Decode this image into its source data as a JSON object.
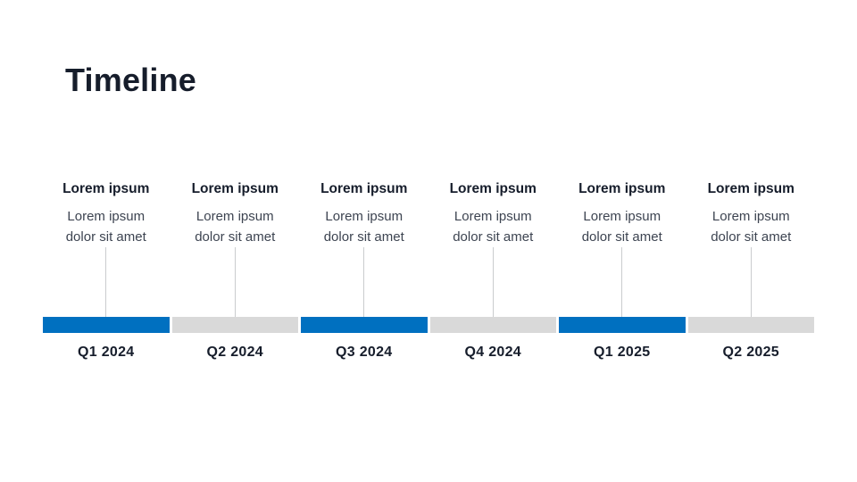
{
  "slide": {
    "title": "Timeline"
  },
  "colors": {
    "accent_blue": "#0070C0",
    "track_gray": "#D9D9D9",
    "connector_gray": "#CACCCE",
    "heading_dark": "#161D2B",
    "body_gray": "#3D4451"
  },
  "milestones": [
    {
      "heading": "Lorem ipsum",
      "description": "Lorem ipsum dolor sit amet",
      "period": "Q1 2024",
      "bar_color": "#0070C0"
    },
    {
      "heading": "Lorem ipsum",
      "description": "Lorem ipsum dolor sit amet",
      "period": "Q2 2024",
      "bar_color": "#D9D9D9"
    },
    {
      "heading": "Lorem ipsum",
      "description": "Lorem ipsum dolor sit amet",
      "period": "Q3 2024",
      "bar_color": "#0070C0"
    },
    {
      "heading": "Lorem ipsum",
      "description": "Lorem ipsum dolor sit amet",
      "period": "Q4 2024",
      "bar_color": "#D9D9D9"
    },
    {
      "heading": "Lorem ipsum",
      "description": "Lorem ipsum dolor sit amet",
      "period": "Q1 2025",
      "bar_color": "#0070C0"
    },
    {
      "heading": "Lorem ipsum",
      "description": "Lorem ipsum dolor sit amet",
      "period": "Q2 2025",
      "bar_color": "#D9D9D9"
    }
  ]
}
